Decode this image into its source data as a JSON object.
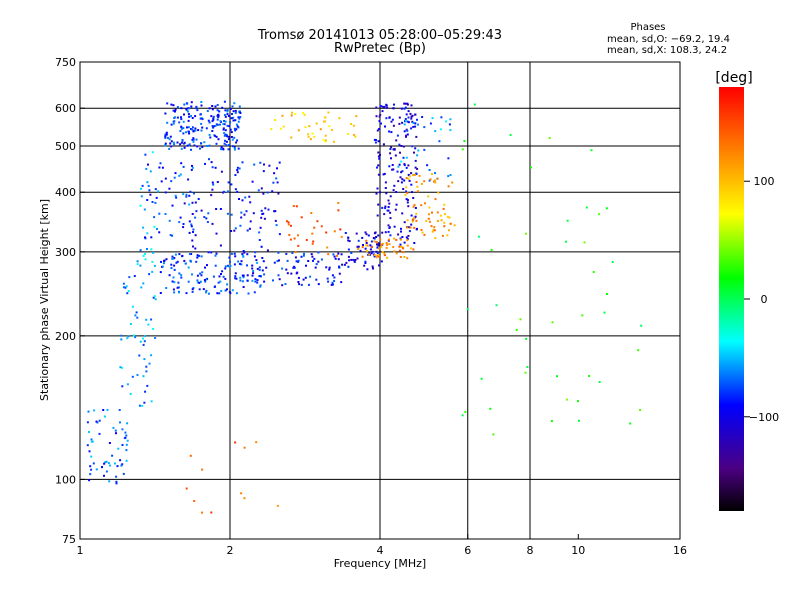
{
  "chart_data": {
    "type": "scatter",
    "title": "Tromsø 20141013 05:28:00–05:29:43",
    "subtitle": "RwPretec (Bp)",
    "stats": {
      "heading": "Phases",
      "line1": "mean, sd,O: −69.2, 19.4",
      "line2": "mean, sd,X: 108.3, 24.2"
    },
    "xlabel": "Frequency [MHz]",
    "ylabel": "Stationary phase Virtual Height [km]",
    "x_scale": "log",
    "y_scale": "log",
    "xlim": [
      1,
      16
    ],
    "ylim": [
      75,
      750
    ],
    "x_ticks": [
      1,
      2,
      4,
      6,
      8,
      10,
      16
    ],
    "x_tick_labels": [
      "1",
      "2",
      "4",
      "6",
      "8",
      "10",
      "16"
    ],
    "y_ticks": [
      75,
      100,
      200,
      300,
      400,
      500,
      600,
      750
    ],
    "y_tick_labels": [
      "75",
      "100",
      "200",
      "300",
      "400",
      "500",
      "600",
      "750"
    ],
    "x_gridlines": [
      2,
      4,
      6,
      8
    ],
    "y_gridlines": [
      100,
      200,
      300,
      400,
      500,
      600
    ],
    "colorbar": {
      "label": "[deg]",
      "min": -180,
      "max": 180,
      "ticks": [
        100,
        0,
        -100
      ],
      "tick_labels": [
        "100",
        "0",
        "−100"
      ]
    },
    "point_clouds": [
      {
        "x": [
          1.48,
          2.1
        ],
        "y": [
          490,
          620
        ],
        "phase": -82,
        "count": 230
      },
      {
        "x": [
          1.35,
          1.72
        ],
        "y": [
          320,
          480
        ],
        "phase": -75,
        "count": 50
      },
      {
        "x": [
          1.62,
          2.55
        ],
        "y": [
          300,
          470
        ],
        "phase": -90,
        "count": 110
      },
      {
        "x": [
          1.45,
          2.3
        ],
        "y": [
          245,
          300
        ],
        "phase": -78,
        "count": 150
      },
      {
        "x": [
          2.2,
          3.4
        ],
        "y": [
          255,
          300
        ],
        "phase": -88,
        "count": 90
      },
      {
        "x": [
          3.4,
          4.05
        ],
        "y": [
          275,
          330
        ],
        "phase": -100,
        "count": 60
      },
      {
        "x": [
          3.9,
          4.75
        ],
        "y": [
          310,
          620
        ],
        "phase": -105,
        "count": 190
      },
      {
        "x": [
          4.35,
          5.6
        ],
        "y": [
          420,
          580
        ],
        "phase": -60,
        "count": 35
      },
      {
        "x": [
          2.4,
          3.6
        ],
        "y": [
          510,
          590
        ],
        "phase": 95,
        "count": 40
      },
      {
        "x": [
          3.6,
          4.7
        ],
        "y": [
          290,
          320
        ],
        "phase": 120,
        "count": 50
      },
      {
        "x": [
          4.5,
          5.65
        ],
        "y": [
          320,
          440
        ],
        "phase": 115,
        "count": 70
      },
      {
        "x": [
          2.6,
          3.4
        ],
        "y": [
          290,
          380
        ],
        "phase": 140,
        "count": 30
      },
      {
        "x": [
          1.02,
          1.25
        ],
        "y": [
          98,
          140
        ],
        "phase": -70,
        "count": 60
      },
      {
        "x": [
          1.2,
          1.42
        ],
        "y": [
          140,
          270
        ],
        "phase": -60,
        "count": 55
      },
      {
        "x": [
          1.3,
          1.42
        ],
        "y": [
          270,
          500
        ],
        "phase": -55,
        "count": 25
      },
      {
        "x": [
          5.6,
          14
        ],
        "y": [
          110,
          640
        ],
        "phase": 20,
        "count": 45
      },
      {
        "x": [
          1.5,
          2.5
        ],
        "y": [
          85,
          120
        ],
        "phase": 140,
        "count": 12
      }
    ],
    "grid": true,
    "legend": "colorbar-right"
  }
}
